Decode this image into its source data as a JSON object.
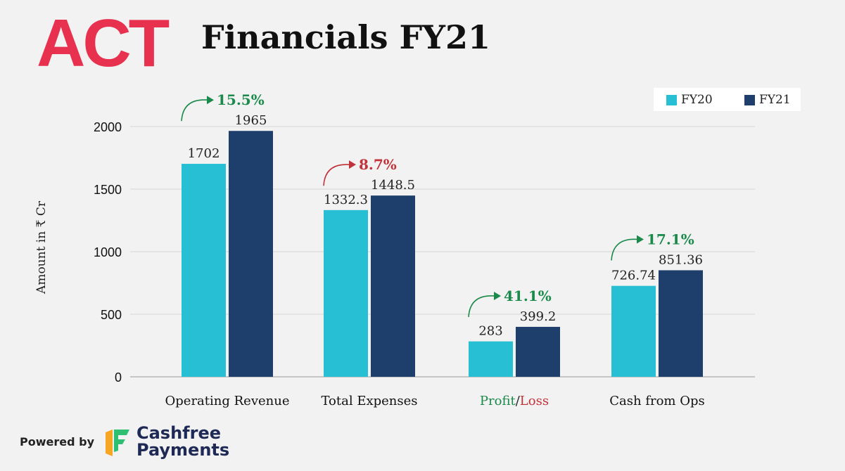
{
  "header": {
    "logo_text": "ACT",
    "title": "Financials FY21"
  },
  "colors": {
    "fy20": "#26bfd3",
    "fy21": "#1e3f6b",
    "increase": "#1a8a4a",
    "decrease": "#c0333a",
    "logo": "#e8314f"
  },
  "chart_data": {
    "type": "bar",
    "ylabel": "Amount in ₹ Cr",
    "ylim": [
      0,
      2000
    ],
    "yticks": [
      0,
      500,
      1000,
      1500,
      2000
    ],
    "grid": true,
    "legend_position": "top-right",
    "categories": [
      "Operating Revenue",
      "Total Expenses",
      "Profit/Loss",
      "Cash from Ops"
    ],
    "series": [
      {
        "name": "FY20",
        "values": [
          1702,
          1332.3,
          283,
          726.74
        ],
        "labels": [
          "1702",
          "1332.3",
          "283",
          "726.74"
        ]
      },
      {
        "name": "FY21",
        "values": [
          1965,
          1448.5,
          399.2,
          851.36
        ],
        "labels": [
          "1965",
          "1448.5",
          "399.2",
          "851.36"
        ]
      }
    ],
    "growth": [
      {
        "text": "15.5%",
        "trend": "increase"
      },
      {
        "text": "8.7%",
        "trend": "decrease"
      },
      {
        "text": "41.1%",
        "trend": "increase"
      },
      {
        "text": "17.1%",
        "trend": "increase"
      }
    ],
    "profit_loss_label": {
      "profit": "Profit",
      "separator": "/",
      "loss": "Loss"
    }
  },
  "footer": {
    "powered_by": "Powered by",
    "brand_line1": "Cashfree",
    "brand_line2": "Payments"
  }
}
